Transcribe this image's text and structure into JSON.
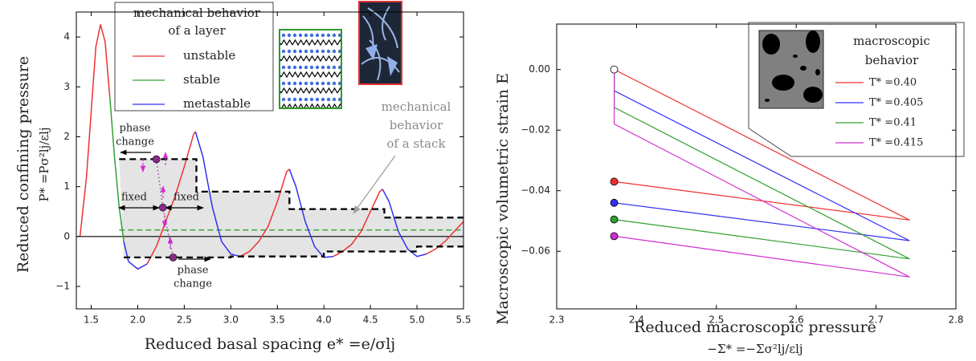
{
  "chart_data": [
    {
      "type": "line",
      "x": [
        1.38,
        1.45,
        1.5,
        1.55,
        1.6,
        1.65,
        1.7,
        1.75,
        1.8,
        1.85,
        1.9,
        2.0,
        2.1,
        2.2,
        2.3,
        2.4,
        2.5,
        2.6,
        2.62,
        2.7,
        2.8,
        2.9,
        3.0,
        3.1,
        3.2,
        3.3,
        3.4,
        3.5,
        3.6,
        3.63,
        3.7,
        3.8,
        3.9,
        4.0,
        4.1,
        4.2,
        4.3,
        4.4,
        4.5,
        4.6,
        4.63,
        4.7,
        4.8,
        4.9,
        5.0,
        5.1,
        5.2,
        5.3,
        5.4,
        5.5
      ],
      "series": [
        {
          "name": "unstable",
          "color": "#f03030",
          "values": [
            0,
            1.2,
            2.5,
            3.8,
            4.25,
            3.9,
            2.8,
            null,
            null,
            null,
            null,
            null,
            -0.55,
            -0.2,
            0.3,
            0.8,
            1.4,
            2.05,
            2.1,
            null,
            null,
            null,
            null,
            -0.4,
            -0.3,
            -0.1,
            0.2,
            0.7,
            1.3,
            1.35,
            null,
            null,
            null,
            null,
            -0.4,
            -0.3,
            -0.15,
            0.1,
            0.5,
            0.9,
            0.95,
            null,
            null,
            null,
            null,
            -0.35,
            -0.25,
            -0.1,
            0.1,
            0.3
          ]
        },
        {
          "name": "stable",
          "color": "#30a030",
          "values": [
            null,
            null,
            null,
            null,
            null,
            null,
            2.8,
            1.6,
            0.6,
            -0.1,
            null,
            null,
            null,
            null,
            null,
            null,
            null,
            null,
            null,
            null,
            null,
            null,
            null,
            null,
            null,
            null,
            null,
            null,
            null,
            null,
            null,
            null,
            null,
            null,
            null,
            null,
            null,
            null,
            null,
            null,
            null,
            null,
            null,
            null,
            null,
            null,
            null,
            null,
            null,
            null
          ]
        },
        {
          "name": "metastable",
          "color": "#3030f0",
          "values": [
            null,
            null,
            null,
            null,
            null,
            null,
            null,
            null,
            null,
            -0.1,
            -0.5,
            -0.65,
            -0.55,
            null,
            null,
            null,
            null,
            null,
            2.1,
            1.6,
            0.6,
            -0.1,
            -0.35,
            -0.4,
            null,
            null,
            null,
            null,
            null,
            1.35,
            1.0,
            0.3,
            -0.2,
            -0.42,
            -0.4,
            null,
            null,
            null,
            null,
            null,
            0.95,
            0.7,
            0.1,
            -0.25,
            -0.4,
            -0.35,
            null,
            null,
            null,
            null
          ]
        }
      ],
      "envelope": {
        "upper_x": [
          1.8,
          2.63,
          2.63,
          3.63,
          3.63,
          4.65,
          4.65,
          5.5
        ],
        "upper": [
          1.55,
          1.55,
          0.9,
          0.9,
          0.55,
          0.55,
          0.38,
          0.38
        ],
        "lower_x": [
          1.85,
          3.0,
          3.0,
          4.0,
          4.0,
          5.0,
          5.0,
          5.5
        ],
        "lower": [
          -0.42,
          -0.42,
          -0.4,
          -0.4,
          -0.3,
          -0.3,
          -0.2,
          -0.2
        ]
      },
      "stable_level": {
        "x": [
          1.8,
          5.5
        ],
        "values": [
          0.13,
          0.13
        ],
        "color": "#30a030"
      },
      "reference_line": 0,
      "points": {
        "x": [
          2.2,
          2.27,
          2.38
        ],
        "values": [
          1.55,
          0.58,
          -0.42
        ],
        "color": "#8a2b8a"
      },
      "xlim": [
        1.34,
        5.5
      ],
      "ylim": [
        -1.45,
        4.5
      ],
      "xticks": [
        1.5,
        {
          "value": 2,
          "label": "2.0"
        },
        2.5,
        {
          "value": 3,
          "label": "3.0"
        },
        3.5,
        {
          "value": 4,
          "label": "4.0"
        },
        4.5,
        {
          "value": 5,
          "label": "5.0"
        },
        5.5
      ],
      "yticks": [
        {
          "value": -1,
          "label": "−1"
        },
        0,
        1,
        2,
        3,
        4
      ],
      "xlabel": "Reduced basal spacing e* =e/σlj",
      "ylabel": [
        "Reduced confining pressure",
        "P* =Pσ²lj/εlj"
      ],
      "legend": {
        "title": [
          "mechanical behavior",
          "of a layer"
        ],
        "corner": "upper center"
      },
      "annotations": {
        "phase_change_top": [
          "phase",
          "change"
        ],
        "fixed_left": "fixed",
        "fixed_right": "fixed",
        "phase_change_bottom": [
          "phase",
          "change"
        ],
        "stack": [
          "mechanical",
          "behavior",
          "of a stack"
        ]
      }
    },
    {
      "type": "line",
      "series": [
        {
          "name": "T* =0.40",
          "color": "#f03030",
          "x": [
            2.372,
            2.372,
            2.742,
            2.372
          ],
          "values": [
            0,
            0,
            -0.0497,
            -0.037
          ]
        },
        {
          "name": "T* =0.405",
          "color": "#3030f0",
          "x": [
            2.372,
            2.372,
            2.742,
            2.372
          ],
          "values": [
            0,
            -0.007,
            -0.0565,
            -0.044
          ]
        },
        {
          "name": "T* =0.41",
          "color": "#30a030",
          "x": [
            2.372,
            2.372,
            2.742,
            2.372
          ],
          "values": [
            0,
            -0.0125,
            -0.0625,
            -0.0495
          ]
        },
        {
          "name": "T* =0.415",
          "color": "#d030d0",
          "x": [
            2.372,
            2.372,
            2.742,
            2.372
          ],
          "values": [
            0,
            -0.018,
            -0.0685,
            -0.055
          ]
        }
      ],
      "xlim": [
        2.3,
        2.8
      ],
      "ylim": [
        -0.079,
        0.015
      ],
      "xticks": [
        2.3,
        2.4,
        2.5,
        2.6,
        2.7,
        2.8
      ],
      "yticks": [
        {
          "value": 0,
          "label": "0.00"
        },
        {
          "value": -0.02,
          "label": "−0.02"
        },
        {
          "value": -0.04,
          "label": "−0.04"
        },
        {
          "value": -0.06,
          "label": "−0.06"
        }
      ],
      "xlabel": [
        "Reduced macroscopic pressure",
        "−Σ* =−Σσ²lj/εlj"
      ],
      "ylabel": "Macroscopic volumetric strain E",
      "legend": {
        "title": [
          "macroscopic",
          "behavior"
        ],
        "corner": "upper right"
      }
    }
  ]
}
